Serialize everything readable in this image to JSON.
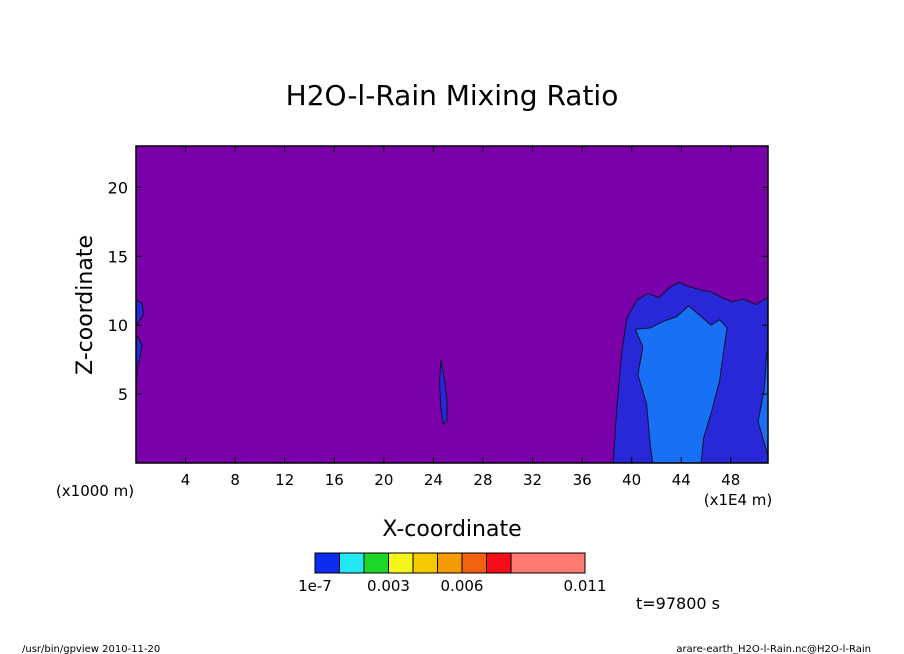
{
  "chart_data": {
    "type": "heatmap",
    "title": "H2O-l-Rain Mixing Ratio",
    "xlabel": "X-coordinate",
    "ylabel": "Z-coordinate",
    "x_unit": "(x1E4 m)",
    "y_unit": "(x1000 m)",
    "xlim": [
      0,
      51
    ],
    "ylim": [
      0,
      23
    ],
    "x_ticks": [
      4,
      8,
      12,
      16,
      20,
      24,
      28,
      32,
      36,
      40,
      44,
      48
    ],
    "y_ticks": [
      5,
      10,
      15,
      20
    ],
    "background_color": "#7a00aa",
    "contour_regions": [
      {
        "level_index": 0,
        "color": "#2828d8",
        "description_points": [
          [
            38.5,
            0
          ],
          [
            38.8,
            4
          ],
          [
            39.2,
            8
          ],
          [
            39.6,
            10.5
          ],
          [
            40.4,
            11.8
          ],
          [
            41.3,
            12.3
          ],
          [
            42.2,
            12.0
          ],
          [
            43.0,
            12.7
          ],
          [
            43.8,
            13.1
          ],
          [
            44.6,
            12.8
          ],
          [
            45.4,
            12.6
          ],
          [
            46.4,
            12.4
          ],
          [
            47.3,
            12.0
          ],
          [
            48.1,
            11.7
          ],
          [
            49.0,
            11.9
          ],
          [
            50.0,
            11.5
          ],
          [
            51.0,
            12.0
          ],
          [
            51.0,
            0
          ]
        ]
      },
      {
        "level_index": 0,
        "color": "#2828d8",
        "description_points": [
          [
            0,
            11.8
          ],
          [
            0.5,
            11.6
          ],
          [
            0.6,
            10.8
          ],
          [
            0.2,
            10.2
          ],
          [
            0,
            10.0
          ]
        ]
      },
      {
        "level_index": 0,
        "color": "#2828d8",
        "description_points": [
          [
            0,
            9.3
          ],
          [
            0.5,
            8.6
          ],
          [
            0.3,
            7.6
          ],
          [
            0.1,
            7.0
          ],
          [
            0,
            4.0
          ]
        ]
      },
      {
        "level_index": 0,
        "color": "#2828d8",
        "description_points": [
          [
            24.6,
            7.5
          ],
          [
            24.9,
            6.0
          ],
          [
            25.1,
            4.5
          ],
          [
            25.1,
            3.1
          ],
          [
            24.8,
            2.8
          ],
          [
            24.6,
            4.0
          ],
          [
            24.5,
            5.8
          ]
        ]
      },
      {
        "level_index": 1,
        "color": "#1870f5",
        "description_points": [
          [
            40.3,
            9.7
          ],
          [
            40.9,
            8.4
          ],
          [
            40.5,
            6.4
          ],
          [
            41.2,
            4.3
          ],
          [
            41.5,
            1.3
          ],
          [
            41.7,
            0
          ],
          [
            45.6,
            0
          ],
          [
            45.8,
            1.8
          ],
          [
            46.5,
            3.9
          ],
          [
            47.1,
            6.0
          ],
          [
            47.4,
            8.0
          ],
          [
            47.7,
            9.8
          ],
          [
            47.1,
            10.4
          ],
          [
            46.4,
            10.0
          ],
          [
            45.5,
            10.7
          ],
          [
            44.6,
            11.4
          ],
          [
            43.6,
            10.6
          ],
          [
            42.6,
            10.3
          ],
          [
            41.5,
            9.8
          ]
        ]
      },
      {
        "level_index": 1,
        "color": "#1870f5",
        "description_points": [
          [
            50.2,
            3.0
          ],
          [
            50.7,
            5.4
          ],
          [
            50.9,
            8.0
          ],
          [
            51.0,
            8.0
          ],
          [
            51.0,
            0.5
          ]
        ]
      }
    ],
    "colorbar": {
      "colors": [
        "#0e2cf0",
        "#22e8f2",
        "#1cd62a",
        "#f5f51c",
        "#f5c800",
        "#f59a00",
        "#f06210",
        "#f50d18",
        "#ff7a70"
      ],
      "boundary_labels": [
        "1e-7",
        "0.003",
        "0.006",
        "0.011"
      ]
    },
    "time_label": "t=97800 s",
    "footer_left": "/usr/bin/gpview   2010-11-20",
    "footer_right": "arare-earth_H2O-l-Rain.nc@H2O-l-Rain"
  }
}
